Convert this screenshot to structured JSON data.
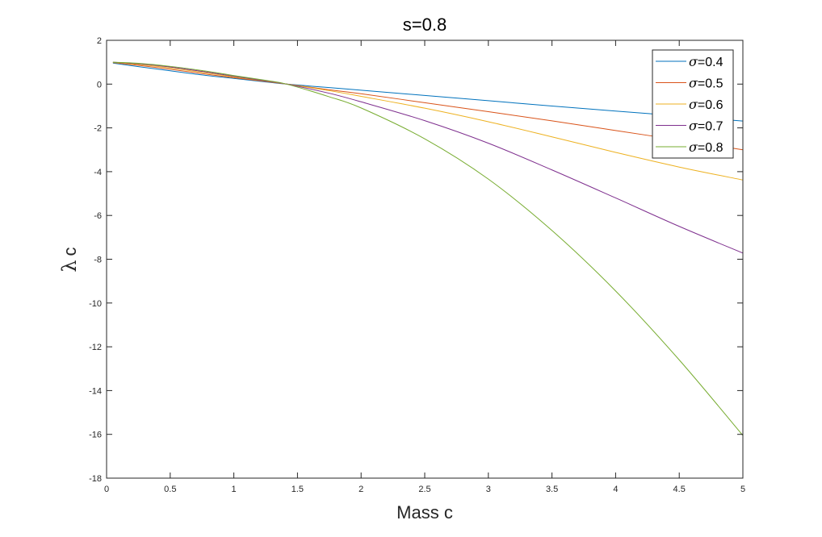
{
  "chart_data": {
    "type": "line",
    "title": "s=0.8",
    "xlabel": "Mass c",
    "ylabel": {
      "symbol": "λ",
      "subscript": "c"
    },
    "xlim": [
      0,
      5
    ],
    "ylim": [
      -18,
      2
    ],
    "xticks": [
      0,
      0.5,
      1,
      1.5,
      2,
      2.5,
      3,
      3.5,
      4,
      4.5,
      5
    ],
    "xtick_labels": [
      "0",
      "0.5",
      "1",
      "1.5",
      "2",
      "2.5",
      "3",
      "3.5",
      "4",
      "4.5",
      "5"
    ],
    "yticks": [
      2,
      0,
      -2,
      -4,
      -6,
      -8,
      -10,
      -12,
      -14,
      -16,
      -18
    ],
    "ytick_labels": [
      "2",
      "0",
      "-2",
      "-4",
      "-6",
      "-8",
      "-10",
      "-12",
      "-14",
      "-16",
      "-18"
    ],
    "grid": false,
    "legend_position": "top-right",
    "x": [
      0.05,
      0.25,
      0.5,
      0.75,
      1.0,
      1.25,
      1.414,
      1.75,
      2.0,
      2.5,
      3.0,
      3.5,
      4.0,
      4.5,
      5.0
    ],
    "series": [
      {
        "name": "σ=0.4",
        "symbol": "σ",
        "label_value": "=0.4",
        "color": "#0072BD",
        "values": [
          0.96,
          0.8,
          0.61,
          0.42,
          0.26,
          0.1,
          0.0,
          -0.16,
          -0.28,
          -0.52,
          -0.76,
          -1.0,
          -1.23,
          -1.46,
          -1.69
        ]
      },
      {
        "name": "σ=0.5",
        "symbol": "σ",
        "label_value": "=0.5",
        "color": "#D95319",
        "values": [
          0.98,
          0.86,
          0.68,
          0.48,
          0.29,
          0.12,
          0.0,
          -0.26,
          -0.44,
          -0.85,
          -1.26,
          -1.68,
          -2.12,
          -2.56,
          -3.0
        ]
      },
      {
        "name": "σ=0.6",
        "symbol": "σ",
        "label_value": "=0.6",
        "color": "#EDB120",
        "values": [
          0.99,
          0.9,
          0.74,
          0.54,
          0.33,
          0.14,
          0.0,
          -0.3,
          -0.56,
          -1.1,
          -1.72,
          -2.41,
          -3.12,
          -3.79,
          -4.38
        ]
      },
      {
        "name": "σ=0.7",
        "symbol": "σ",
        "label_value": "=0.7",
        "color": "#7E2F8E",
        "values": [
          1.0,
          0.93,
          0.78,
          0.58,
          0.36,
          0.15,
          0.0,
          -0.42,
          -0.81,
          -1.67,
          -2.7,
          -3.92,
          -5.2,
          -6.5,
          -7.72
        ]
      },
      {
        "name": "σ=0.8",
        "symbol": "σ",
        "label_value": "=0.8",
        "color": "#77AC30",
        "values": [
          1.0,
          0.95,
          0.81,
          0.62,
          0.39,
          0.17,
          0.0,
          -0.58,
          -1.09,
          -2.5,
          -4.34,
          -6.69,
          -9.45,
          -12.6,
          -16.05
        ]
      }
    ]
  }
}
